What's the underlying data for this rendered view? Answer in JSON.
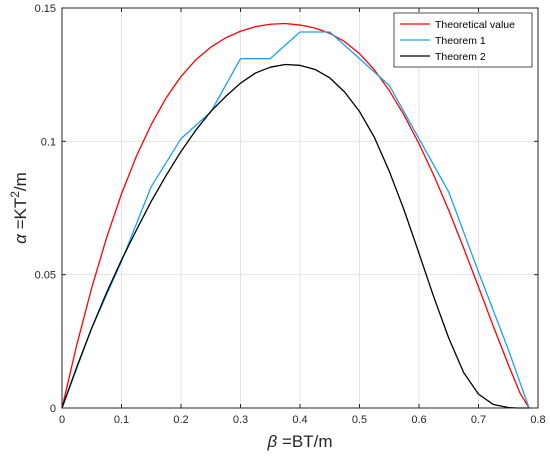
{
  "chart_data": {
    "type": "line",
    "xlabel_symbol": "β",
    "xlabel_text": " =BT/m",
    "ylabel_symbol": "α",
    "ylabel_text": " =KT",
    "ylabel_sup": "2",
    "ylabel_tail": "/m",
    "xlim": [
      0,
      0.8
    ],
    "ylim": [
      0,
      0.15
    ],
    "x_ticks": [
      0,
      0.1,
      0.2,
      0.3,
      0.4,
      0.5,
      0.6,
      0.7,
      0.8
    ],
    "x_tick_labels": [
      "0",
      "0.1",
      "0.2",
      "0.3",
      "0.4",
      "0.5",
      "0.6",
      "0.7",
      "0.8"
    ],
    "y_ticks": [
      0,
      0.05,
      0.1,
      0.15
    ],
    "y_tick_labels": [
      "0",
      "0.05",
      "0.1",
      "0.15"
    ],
    "grid": true,
    "legend_position": "top-right",
    "series": [
      {
        "name": "Theoretical value",
        "color": "#ff0000",
        "x": [
          0,
          0.025,
          0.05,
          0.075,
          0.1,
          0.125,
          0.15,
          0.175,
          0.2,
          0.225,
          0.25,
          0.275,
          0.3,
          0.325,
          0.35,
          0.375,
          0.4,
          0.41,
          0.425,
          0.45,
          0.475,
          0.5,
          0.525,
          0.55,
          0.575,
          0.6,
          0.625,
          0.65,
          0.675,
          0.7,
          0.725,
          0.75,
          0.77,
          0.785
        ],
        "y": [
          0,
          0.0238,
          0.0451,
          0.0639,
          0.0803,
          0.0944,
          0.1063,
          0.1163,
          0.1243,
          0.1306,
          0.1353,
          0.1388,
          0.1413,
          0.143,
          0.1439,
          0.1442,
          0.1436,
          0.1432,
          0.1425,
          0.1405,
          0.1374,
          0.1329,
          0.1268,
          0.1191,
          0.1098,
          0.0991,
          0.0872,
          0.0741,
          0.06,
          0.0454,
          0.0306,
          0.0163,
          0.0055,
          0
        ]
      },
      {
        "name": "Theorem 1",
        "color": "#1aa3ef",
        "x": [
          0,
          0.05,
          0.1,
          0.15,
          0.2,
          0.25,
          0.3,
          0.35,
          0.4,
          0.45,
          0.5,
          0.55,
          0.6,
          0.65,
          0.7,
          0.75,
          0.785
        ],
        "y": [
          0,
          0.03,
          0.055,
          0.083,
          0.101,
          0.111,
          0.131,
          0.131,
          0.141,
          0.141,
          0.131,
          0.121,
          0.101,
          0.081,
          0.051,
          0.022,
          0
        ]
      },
      {
        "name": "Theorem 2",
        "color": "#000000",
        "x": [
          0,
          0.025,
          0.05,
          0.075,
          0.1,
          0.125,
          0.15,
          0.175,
          0.2,
          0.225,
          0.25,
          0.275,
          0.3,
          0.325,
          0.35,
          0.375,
          0.4,
          0.425,
          0.45,
          0.475,
          0.5,
          0.525,
          0.55,
          0.575,
          0.6,
          0.625,
          0.65,
          0.675,
          0.7,
          0.725,
          0.75,
          0.765,
          0.785
        ],
        "y": [
          0,
          0.0155,
          0.03,
          0.0433,
          0.0555,
          0.0667,
          0.0775,
          0.0872,
          0.0962,
          0.1042,
          0.1112,
          0.1168,
          0.1218,
          0.1256,
          0.1278,
          0.1288,
          0.1285,
          0.127,
          0.1238,
          0.1185,
          0.1112,
          0.1015,
          0.0888,
          0.0742,
          0.058,
          0.0415,
          0.0262,
          0.0133,
          0.0052,
          0.0013,
          0.0002,
          0,
          0
        ]
      }
    ]
  }
}
